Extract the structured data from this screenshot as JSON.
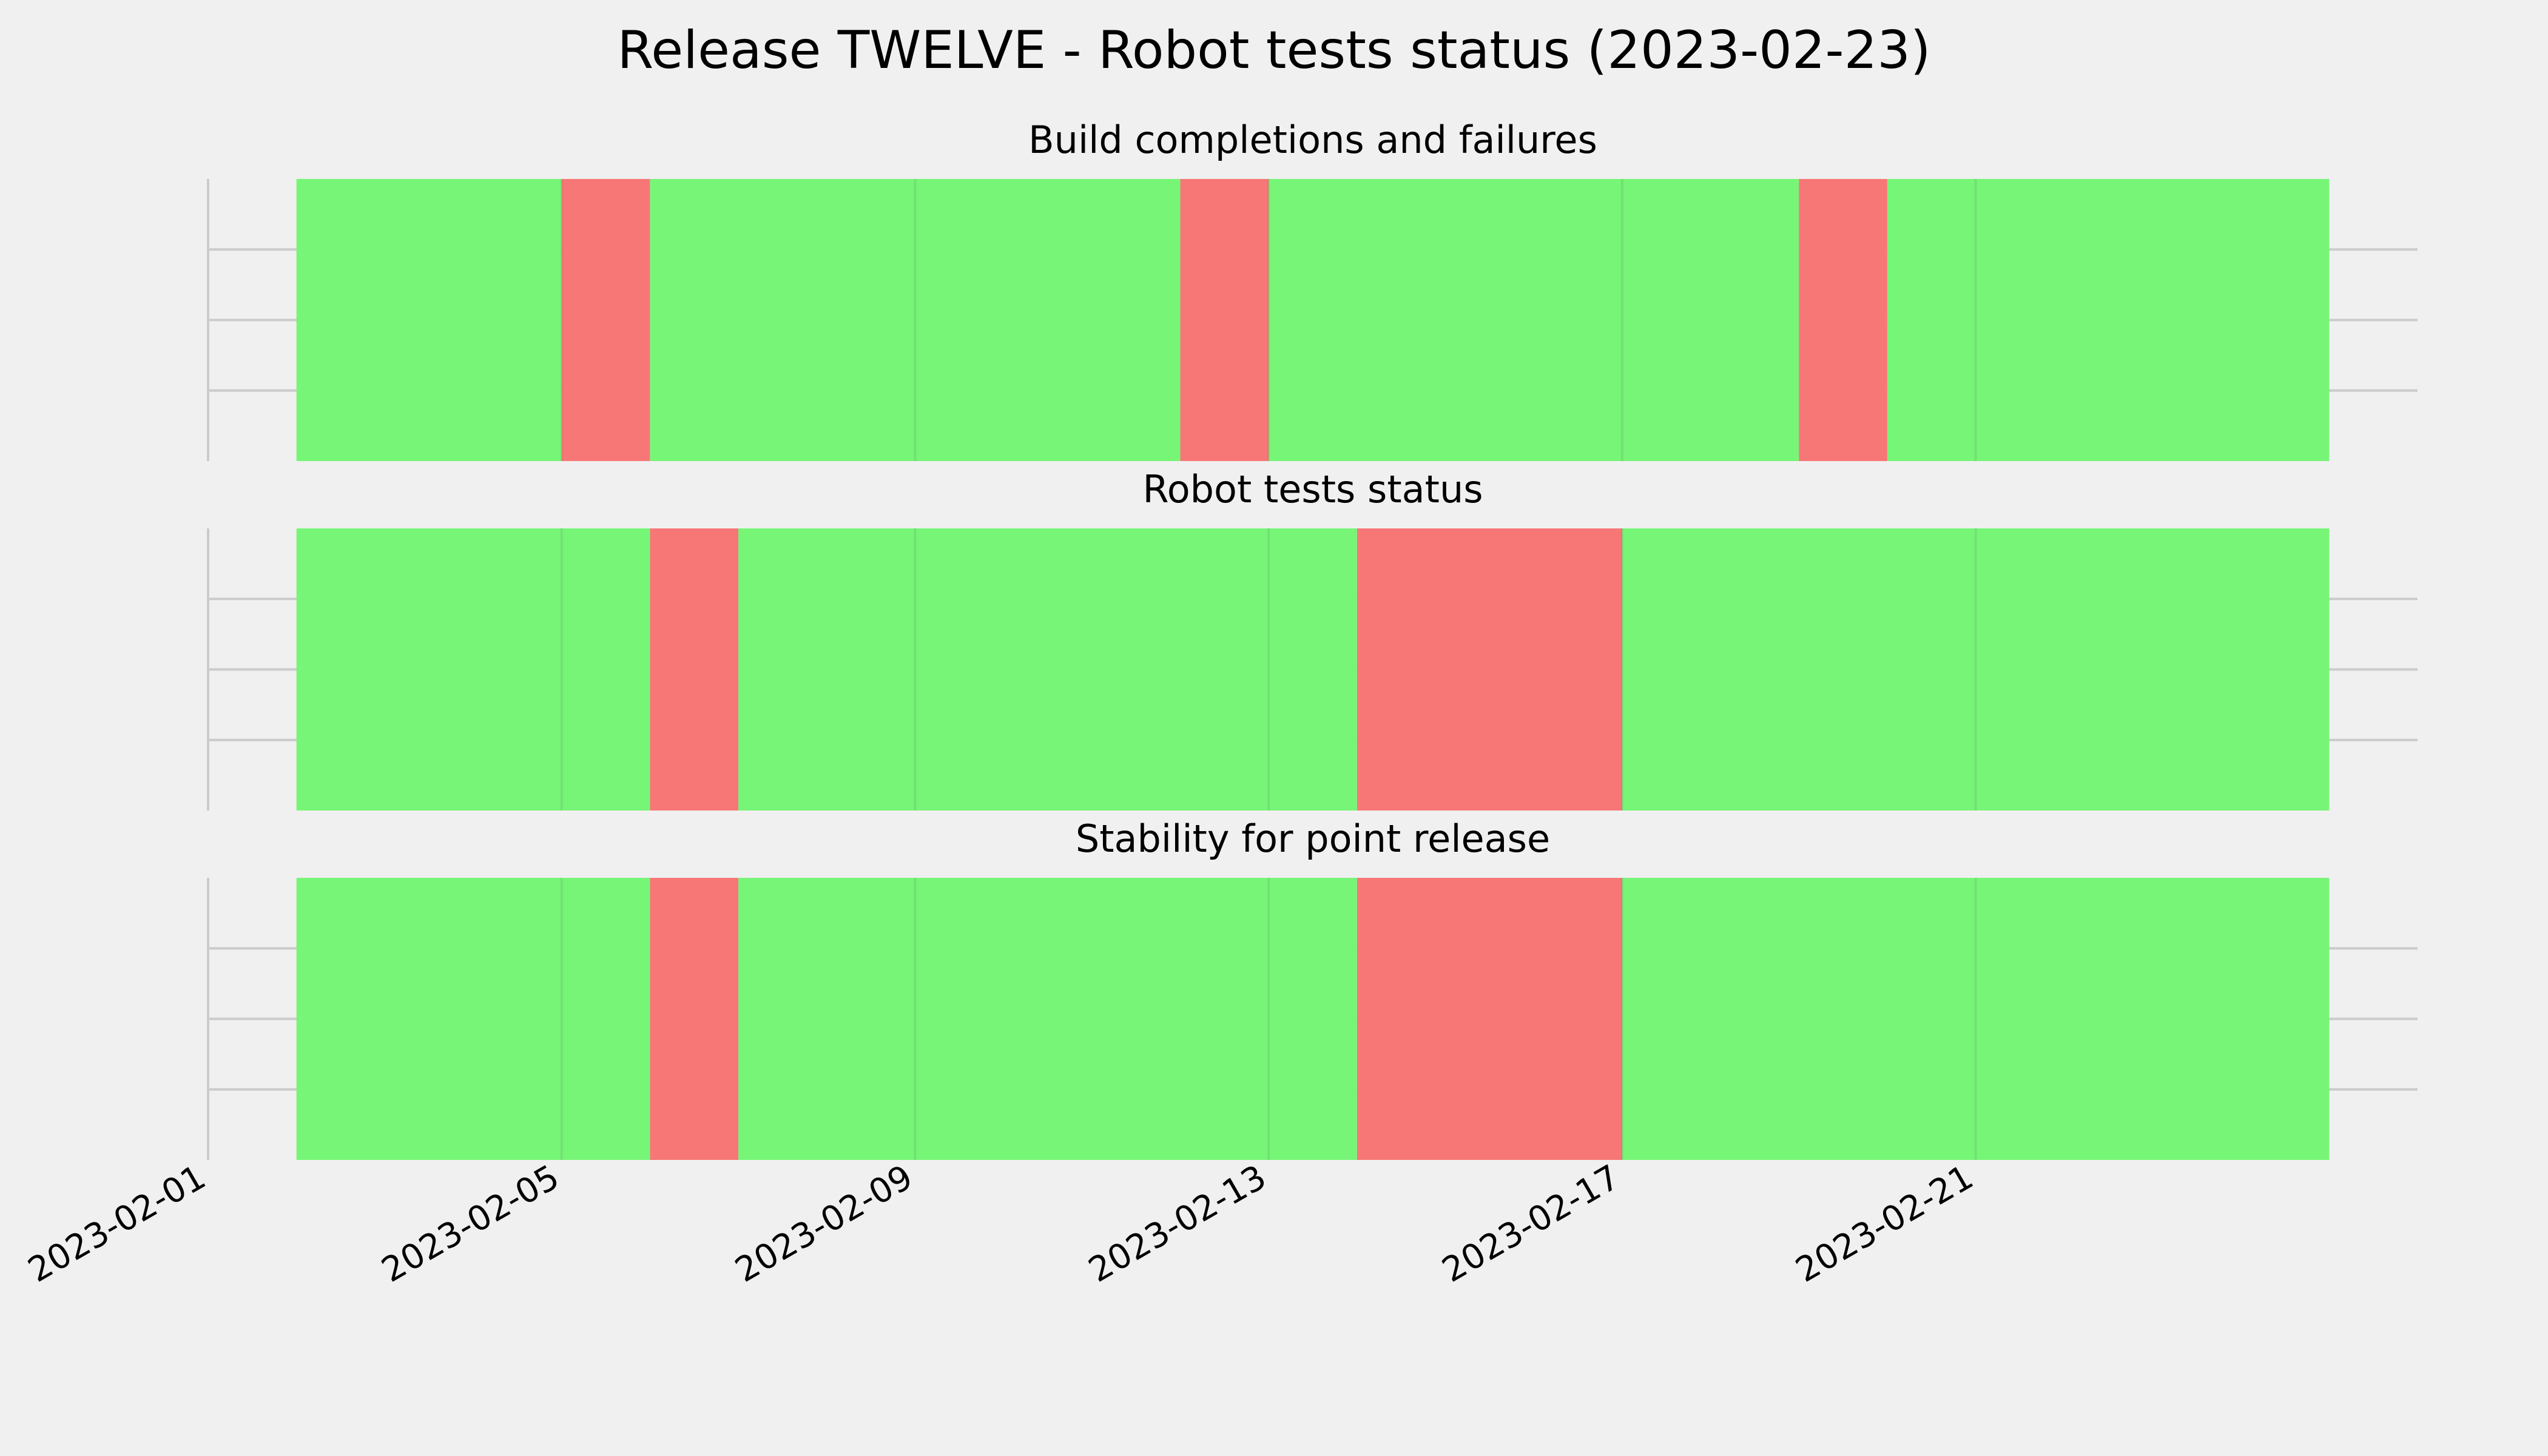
{
  "chart_data": {
    "type": "timeline",
    "title": "Release TWELVE - Robot tests status (2023-02-23)",
    "x_axis": {
      "type": "date",
      "range": [
        "2023-02-01",
        "2023-02-26"
      ],
      "tick_labels": [
        "2023-02-01",
        "2023-02-05",
        "2023-02-09",
        "2023-02-13",
        "2023-02-17",
        "2023-02-21"
      ]
    },
    "grid": true,
    "colors": {
      "pass": "#77f577",
      "fail": "#f77777",
      "background": "#f0f0f0",
      "grid": "#cbcbcb"
    },
    "panels": [
      {
        "title": "Build completions and failures",
        "segments": [
          {
            "start": "2023-02-02",
            "end": "2023-02-05",
            "status": "pass"
          },
          {
            "start": "2023-02-05",
            "end": "2023-02-06",
            "status": "fail"
          },
          {
            "start": "2023-02-06",
            "end": "2023-02-12",
            "status": "pass"
          },
          {
            "start": "2023-02-12",
            "end": "2023-02-13",
            "status": "fail"
          },
          {
            "start": "2023-02-13",
            "end": "2023-02-19",
            "status": "pass"
          },
          {
            "start": "2023-02-19",
            "end": "2023-02-20",
            "status": "fail"
          },
          {
            "start": "2023-02-20",
            "end": "2023-02-25",
            "status": "pass"
          }
        ]
      },
      {
        "title": "Robot tests status",
        "segments": [
          {
            "start": "2023-02-02",
            "end": "2023-02-06",
            "status": "pass"
          },
          {
            "start": "2023-02-06",
            "end": "2023-02-07",
            "status": "fail"
          },
          {
            "start": "2023-02-07",
            "end": "2023-02-14",
            "status": "pass"
          },
          {
            "start": "2023-02-14",
            "end": "2023-02-17",
            "status": "fail"
          },
          {
            "start": "2023-02-17",
            "end": "2023-02-25",
            "status": "pass"
          }
        ]
      },
      {
        "title": "Stability for point release",
        "segments": [
          {
            "start": "2023-02-02",
            "end": "2023-02-06",
            "status": "pass"
          },
          {
            "start": "2023-02-06",
            "end": "2023-02-07",
            "status": "fail"
          },
          {
            "start": "2023-02-07",
            "end": "2023-02-14",
            "status": "pass"
          },
          {
            "start": "2023-02-14",
            "end": "2023-02-17",
            "status": "fail"
          },
          {
            "start": "2023-02-17",
            "end": "2023-02-25",
            "status": "pass"
          }
        ]
      }
    ]
  }
}
